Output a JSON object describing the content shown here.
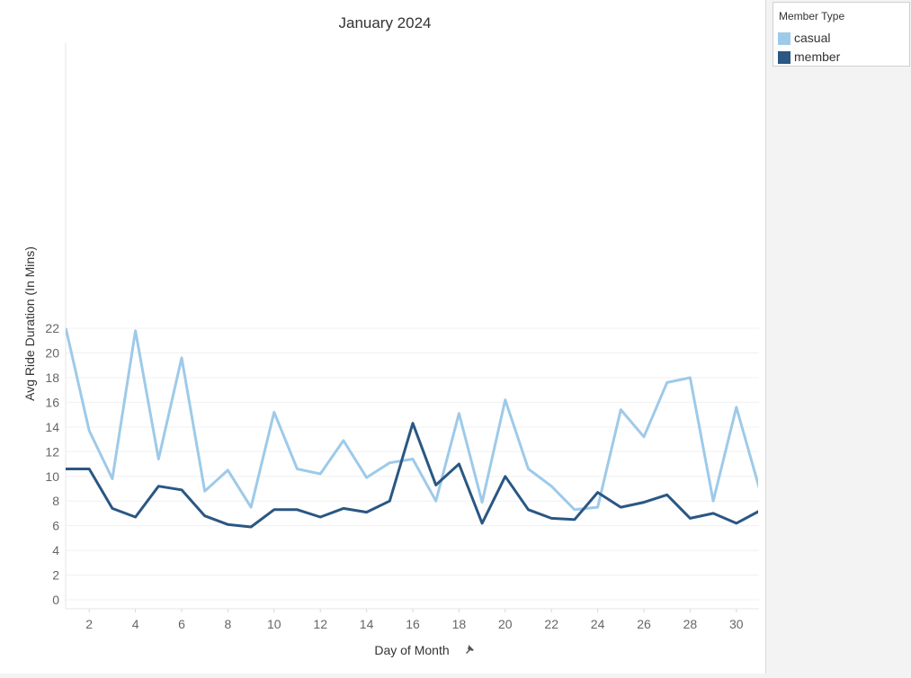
{
  "chart_data": {
    "type": "line",
    "title": "January 2024",
    "xlabel": "Day of Month",
    "ylabel": "Avg Ride Duration (In Mins)",
    "ylim": [
      0,
      23
    ],
    "xlim": [
      1,
      31
    ],
    "x_ticks": [
      2,
      4,
      6,
      8,
      10,
      12,
      14,
      16,
      18,
      20,
      22,
      24,
      26,
      28,
      30
    ],
    "y_ticks": [
      0,
      2,
      4,
      6,
      8,
      10,
      12,
      14,
      16,
      18,
      20,
      22
    ],
    "grid": "horizontal",
    "legend_position": "top-right",
    "x": [
      1,
      2,
      3,
      4,
      5,
      6,
      7,
      8,
      9,
      10,
      11,
      12,
      13,
      14,
      15,
      16,
      17,
      18,
      19,
      20,
      21,
      22,
      23,
      24,
      25,
      26,
      27,
      28,
      29,
      30,
      31
    ],
    "series": [
      {
        "name": "casual",
        "color": "#9ecae9",
        "values": [
          21.9,
          13.7,
          9.8,
          21.8,
          11.4,
          19.6,
          8.8,
          10.5,
          7.5,
          15.2,
          10.6,
          10.2,
          12.9,
          9.9,
          11.1,
          11.4,
          8.0,
          15.1,
          7.9,
          16.2,
          10.6,
          9.2,
          7.3,
          7.5,
          15.4,
          13.2,
          17.6,
          18.0,
          8.0,
          15.6,
          9.0
        ]
      },
      {
        "name": "member",
        "color": "#2a5783",
        "values": [
          10.6,
          10.6,
          7.4,
          6.7,
          9.2,
          8.9,
          6.8,
          6.1,
          5.9,
          7.3,
          7.3,
          6.7,
          7.4,
          7.1,
          8.0,
          14.3,
          9.3,
          11.0,
          6.2,
          10.0,
          7.3,
          6.6,
          6.5,
          8.7,
          7.5,
          7.9,
          8.5,
          6.6,
          7.0,
          6.2,
          7.2
        ]
      }
    ]
  },
  "legend": {
    "title": "Member Type",
    "items": [
      {
        "label": "casual",
        "color": "#9ecae9"
      },
      {
        "label": "member",
        "color": "#2a5783"
      }
    ]
  },
  "colors": {
    "axis_text": "#666666",
    "title_text": "#333333",
    "gridline": "#f0f0f0",
    "pin_icon": "#555555"
  },
  "icons": {
    "sort_pin": "pin-icon"
  }
}
